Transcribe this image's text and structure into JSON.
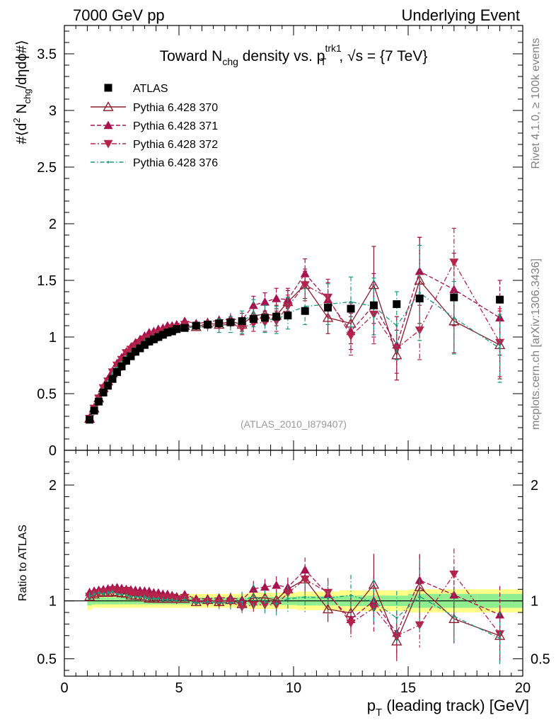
{
  "header": {
    "left": "7000 GeV pp",
    "right": "Underlying Event"
  },
  "side_labels": {
    "rivet": "Rivet 4.1.0, ≥ 100k events",
    "mcplots": "mcplots.cern.ch [arXiv:1306.3436]"
  },
  "chart_data": {
    "type": "scatter",
    "title_parts": {
      "t1": "Toward N",
      "t1_sub": "chg",
      "t2": " density vs. p",
      "t2_sup": "trk1",
      "t2_sub": "T",
      "t3": ", √s = {7 TeV}"
    },
    "analysis_id": "(ATLAS_2010_I879407)",
    "ylabel_parts": {
      "a": "#⟨d",
      "a_sup": "2",
      "b": " N",
      "b_sub": "chg",
      "c": "/dηdϕ#⟩"
    },
    "xlabel_parts": {
      "a": "p",
      "a_sub": "T",
      "b": " (leading track) [GeV]"
    },
    "ratio_ylabel": "Ratio to ATLAS",
    "xlim": [
      0,
      20
    ],
    "ylim": [
      0,
      3.75
    ],
    "ratio_ylim": [
      0.35,
      2.3
    ],
    "x_ticks": [
      "0",
      "5",
      "10",
      "15",
      "20"
    ],
    "x_tick_values": [
      0,
      5,
      10,
      15,
      20
    ],
    "y_ticks": [
      "0",
      "0.5",
      "1",
      "1.5",
      "2",
      "2.5",
      "3",
      "3.5"
    ],
    "y_tick_values": [
      0,
      0.5,
      1,
      1.5,
      2,
      2.5,
      3,
      3.5
    ],
    "ratio_ticks": [
      "0.5",
      "1",
      "2"
    ],
    "ratio_tick_values": [
      0.5,
      1,
      2
    ],
    "x": [
      1.1,
      1.3,
      1.5,
      1.7,
      1.9,
      2.1,
      2.3,
      2.5,
      2.7,
      2.9,
      3.1,
      3.3,
      3.5,
      3.7,
      3.9,
      4.1,
      4.3,
      4.5,
      4.7,
      4.9,
      5.25,
      5.75,
      6.25,
      6.75,
      7.25,
      7.75,
      8.25,
      8.75,
      9.25,
      9.75,
      10.5,
      11.5,
      12.5,
      13.5,
      14.5,
      15.5,
      17.0,
      19.0
    ],
    "series": [
      {
        "name": "ATLAS",
        "marker": "square",
        "color": "#000000",
        "dash": "",
        "values": [
          0.27,
          0.35,
          0.43,
          0.51,
          0.57,
          0.63,
          0.69,
          0.74,
          0.79,
          0.83,
          0.87,
          0.9,
          0.93,
          0.96,
          0.98,
          1.0,
          1.02,
          1.04,
          1.05,
          1.07,
          1.08,
          1.1,
          1.11,
          1.12,
          1.13,
          1.14,
          1.16,
          1.17,
          1.18,
          1.19,
          1.23,
          1.26,
          1.25,
          1.28,
          1.29,
          1.34,
          1.35,
          1.33
        ]
      },
      {
        "name": "Pythia 6.428 370",
        "marker": "triangle-up-open",
        "color": "#8b1a2b",
        "dash": "",
        "values": [
          0.28,
          0.37,
          0.46,
          0.55,
          0.61,
          0.68,
          0.74,
          0.79,
          0.84,
          0.87,
          0.91,
          0.94,
          0.96,
          0.98,
          1.0,
          1.02,
          1.04,
          1.06,
          1.07,
          1.09,
          1.1,
          1.09,
          1.12,
          1.11,
          1.14,
          1.11,
          1.19,
          1.2,
          1.19,
          1.31,
          1.46,
          1.17,
          1.12,
          1.46,
          0.84,
          1.5,
          1.14,
          0.93
        ],
        "errors": [
          0.01,
          0.01,
          0.01,
          0.01,
          0.01,
          0.01,
          0.01,
          0.01,
          0.01,
          0.01,
          0.01,
          0.01,
          0.01,
          0.01,
          0.02,
          0.02,
          0.02,
          0.02,
          0.02,
          0.02,
          0.03,
          0.03,
          0.04,
          0.04,
          0.05,
          0.06,
          0.07,
          0.08,
          0.09,
          0.1,
          0.12,
          0.14,
          0.18,
          0.34,
          0.22,
          0.38,
          0.28,
          0.3
        ]
      },
      {
        "name": "Pythia 6.428 371",
        "marker": "triangle-up",
        "color": "#a8104e",
        "dash": "6,3",
        "values": [
          0.29,
          0.38,
          0.47,
          0.56,
          0.63,
          0.7,
          0.77,
          0.82,
          0.87,
          0.91,
          0.95,
          0.98,
          1.01,
          1.04,
          1.05,
          1.07,
          1.08,
          1.1,
          1.1,
          1.11,
          1.14,
          1.12,
          1.13,
          1.15,
          1.16,
          1.15,
          1.28,
          1.31,
          1.34,
          1.33,
          1.56,
          1.33,
          1.05,
          1.28,
          0.93,
          1.58,
          1.42,
          1.17
        ],
        "errors": [
          0.01,
          0.01,
          0.01,
          0.01,
          0.01,
          0.01,
          0.01,
          0.01,
          0.01,
          0.01,
          0.01,
          0.01,
          0.02,
          0.02,
          0.02,
          0.02,
          0.02,
          0.02,
          0.02,
          0.03,
          0.03,
          0.03,
          0.04,
          0.04,
          0.05,
          0.06,
          0.08,
          0.08,
          0.09,
          0.1,
          0.13,
          0.15,
          0.16,
          0.28,
          0.25,
          0.3,
          0.32,
          0.33
        ]
      },
      {
        "name": "Pythia 6.428 372",
        "marker": "triangle-down",
        "color": "#b5234b",
        "dash": "7,3,2,3",
        "values": [
          0.28,
          0.37,
          0.46,
          0.55,
          0.61,
          0.69,
          0.75,
          0.8,
          0.86,
          0.89,
          0.92,
          0.95,
          0.98,
          0.99,
          1.02,
          1.03,
          1.05,
          1.06,
          1.08,
          1.08,
          1.11,
          1.09,
          1.1,
          1.1,
          1.12,
          1.08,
          1.12,
          1.13,
          1.14,
          1.27,
          1.46,
          1.35,
          1.01,
          1.2,
          0.9,
          1.06,
          1.66,
          0.95
        ],
        "errors": [
          0.01,
          0.01,
          0.01,
          0.01,
          0.01,
          0.01,
          0.01,
          0.01,
          0.01,
          0.01,
          0.01,
          0.01,
          0.02,
          0.02,
          0.02,
          0.02,
          0.02,
          0.02,
          0.02,
          0.03,
          0.03,
          0.03,
          0.04,
          0.04,
          0.05,
          0.06,
          0.07,
          0.08,
          0.09,
          0.1,
          0.14,
          0.16,
          0.17,
          0.26,
          0.28,
          0.26,
          0.3,
          0.3
        ]
      },
      {
        "name": "Pythia 6.428 376",
        "marker": "dot",
        "color": "#1a9b7d",
        "dash": "6,3,1.5,3",
        "values": [
          0.28,
          0.37,
          0.46,
          0.54,
          0.61,
          0.68,
          0.73,
          0.78,
          0.83,
          0.86,
          0.9,
          0.93,
          0.96,
          0.98,
          1.0,
          1.02,
          1.03,
          1.05,
          1.06,
          1.07,
          1.09,
          1.08,
          1.1,
          1.1,
          1.11,
          1.13,
          1.21,
          1.16,
          1.15,
          1.21,
          1.27,
          1.29,
          1.31,
          1.27,
          1.1,
          1.39,
          1.17,
          0.9
        ],
        "errors": [
          0.01,
          0.01,
          0.01,
          0.01,
          0.01,
          0.01,
          0.01,
          0.01,
          0.01,
          0.01,
          0.01,
          0.01,
          0.02,
          0.02,
          0.02,
          0.02,
          0.02,
          0.02,
          0.02,
          0.03,
          0.03,
          0.04,
          0.05,
          0.06,
          0.07,
          0.1,
          0.12,
          0.12,
          0.12,
          0.14,
          0.16,
          0.18,
          0.22,
          0.25,
          0.3,
          0.42,
          0.32,
          0.3
        ]
      }
    ],
    "ratio_band_yellow": [
      0.08,
      0.06,
      0.06,
      0.06,
      0.06,
      0.06,
      0.06,
      0.06,
      0.06,
      0.06,
      0.06,
      0.06,
      0.06,
      0.06,
      0.06,
      0.06,
      0.06,
      0.06,
      0.06,
      0.06,
      0.06,
      0.06,
      0.06,
      0.06,
      0.06,
      0.06,
      0.07,
      0.07,
      0.07,
      0.07,
      0.08,
      0.08,
      0.09,
      0.09,
      0.09,
      0.1,
      0.1,
      0.1
    ],
    "ratio_band_green": [
      0.04,
      0.03,
      0.03,
      0.03,
      0.03,
      0.03,
      0.03,
      0.03,
      0.03,
      0.03,
      0.03,
      0.03,
      0.03,
      0.03,
      0.03,
      0.03,
      0.03,
      0.03,
      0.03,
      0.03,
      0.03,
      0.03,
      0.03,
      0.03,
      0.03,
      0.03,
      0.035,
      0.035,
      0.035,
      0.035,
      0.04,
      0.04,
      0.045,
      0.045,
      0.045,
      0.06,
      0.06,
      0.06
    ]
  }
}
